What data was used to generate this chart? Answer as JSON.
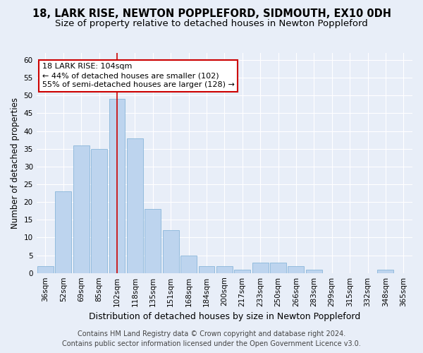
{
  "title": "18, LARK RISE, NEWTON POPPLEFORD, SIDMOUTH, EX10 0DH",
  "subtitle": "Size of property relative to detached houses in Newton Poppleford",
  "xlabel": "Distribution of detached houses by size in Newton Poppleford",
  "ylabel": "Number of detached properties",
  "categories": [
    "36sqm",
    "52sqm",
    "69sqm",
    "85sqm",
    "102sqm",
    "118sqm",
    "135sqm",
    "151sqm",
    "168sqm",
    "184sqm",
    "200sqm",
    "217sqm",
    "233sqm",
    "250sqm",
    "266sqm",
    "283sqm",
    "299sqm",
    "315sqm",
    "332sqm",
    "348sqm",
    "365sqm"
  ],
  "values": [
    2,
    23,
    36,
    35,
    49,
    38,
    18,
    12,
    5,
    2,
    2,
    1,
    3,
    3,
    2,
    1,
    0,
    0,
    0,
    1,
    0
  ],
  "bar_color": "#bdd4ee",
  "bar_edge_color": "#7aadd4",
  "highlight_bar_index": 4,
  "highlight_color": "#cc0000",
  "ylim": [
    0,
    62
  ],
  "yticks": [
    0,
    5,
    10,
    15,
    20,
    25,
    30,
    35,
    40,
    45,
    50,
    55,
    60
  ],
  "annotation_line1": "18 LARK RISE: 104sqm",
  "annotation_line2": "← 44% of detached houses are smaller (102)",
  "annotation_line3": "55% of semi-detached houses are larger (128) →",
  "annotation_box_color": "#ffffff",
  "annotation_box_edge_color": "#cc0000",
  "footer_line1": "Contains HM Land Registry data © Crown copyright and database right 2024.",
  "footer_line2": "Contains public sector information licensed under the Open Government Licence v3.0.",
  "background_color": "#e8eef8",
  "plot_bg_color": "#e8eef8",
  "grid_color": "#ffffff",
  "title_fontsize": 10.5,
  "subtitle_fontsize": 9.5,
  "xlabel_fontsize": 9,
  "ylabel_fontsize": 8.5,
  "tick_fontsize": 7.5,
  "annotation_fontsize": 8,
  "footer_fontsize": 7
}
